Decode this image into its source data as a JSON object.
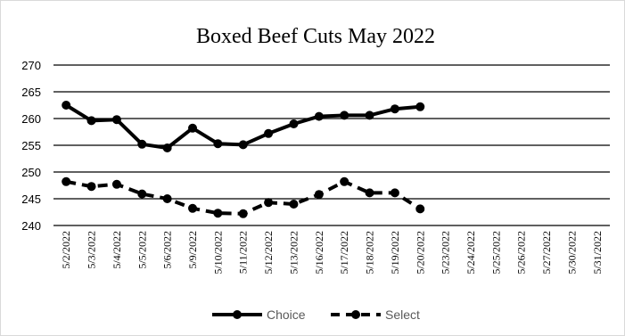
{
  "chart_data": {
    "type": "line",
    "title": "Boxed Beef Cuts May 2022",
    "xlabel": "",
    "ylabel": "",
    "ylim": [
      240,
      270
    ],
    "yticks": [
      240,
      245,
      250,
      255,
      260,
      265,
      270
    ],
    "grid": true,
    "legend_position": "bottom",
    "categories": [
      "5/2/2022",
      "5/3/2022",
      "5/4/2022",
      "5/5/2022",
      "5/6/2022",
      "5/9/2022",
      "5/10/2022",
      "5/11/2022",
      "5/12/2022",
      "5/13/2022",
      "5/16/2022",
      "5/17/2022",
      "5/18/2022",
      "5/19/2022",
      "5/20/2022",
      "5/23/2022",
      "5/24/2022",
      "5/25/2022",
      "5/26/2022",
      "5/27/2022",
      "5/30/2022",
      "5/31/2022"
    ],
    "series": [
      {
        "name": "Choice",
        "style": "solid",
        "color": "#000000",
        "values": [
          262.5,
          259.6,
          259.8,
          255.2,
          254.5,
          258.2,
          255.3,
          255.1,
          257.2,
          259.0,
          260.4,
          260.6,
          260.6,
          261.8,
          262.2,
          null,
          null,
          null,
          null,
          null,
          null,
          null
        ]
      },
      {
        "name": "Select",
        "style": "dashed",
        "color": "#000000",
        "values": [
          248.2,
          247.3,
          247.7,
          245.9,
          245.0,
          243.2,
          242.3,
          242.2,
          244.3,
          244.0,
          245.8,
          248.2,
          246.1,
          246.1,
          243.1,
          null,
          null,
          null,
          null,
          null,
          null,
          null
        ]
      }
    ]
  }
}
